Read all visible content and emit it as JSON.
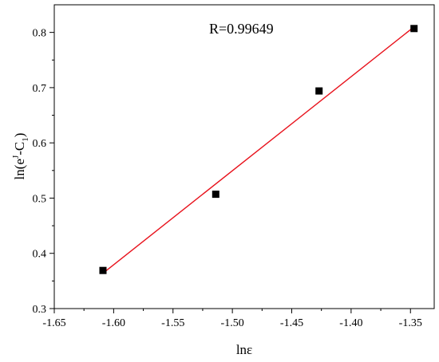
{
  "chart_data": {
    "type": "scatter",
    "xlabel": "lnε",
    "ylabel": {
      "text": "ln(e",
      "sup": "J",
      "mid": "-C",
      "sub": "1",
      "end": ")"
    },
    "annotation": "R=0.99649",
    "xlim": [
      -1.65,
      -1.33
    ],
    "ylim": [
      0.3,
      0.85
    ],
    "xticks": [
      -1.65,
      -1.6,
      -1.55,
      -1.5,
      -1.45,
      -1.4,
      -1.35
    ],
    "xtick_labels": [
      "-1.65",
      "-1.60",
      "-1.55",
      "-1.50",
      "-1.45",
      "-1.40",
      "-1.35"
    ],
    "yticks": [
      0.3,
      0.4,
      0.5,
      0.6,
      0.7,
      0.8
    ],
    "ytick_labels": [
      "0.3",
      "0.4",
      "0.5",
      "0.6",
      "0.7",
      "0.8"
    ],
    "points": [
      {
        "x": -1.609,
        "y": 0.369
      },
      {
        "x": -1.514,
        "y": 0.507
      },
      {
        "x": -1.427,
        "y": 0.694
      },
      {
        "x": -1.347,
        "y": 0.807
      }
    ],
    "fit_line": {
      "x": [
        -1.609,
        -1.347
      ],
      "y": [
        0.364,
        0.81
      ],
      "color": "#e8121c"
    },
    "marker": "square",
    "marker_color": "#000000",
    "grid": false,
    "legend": "none"
  }
}
